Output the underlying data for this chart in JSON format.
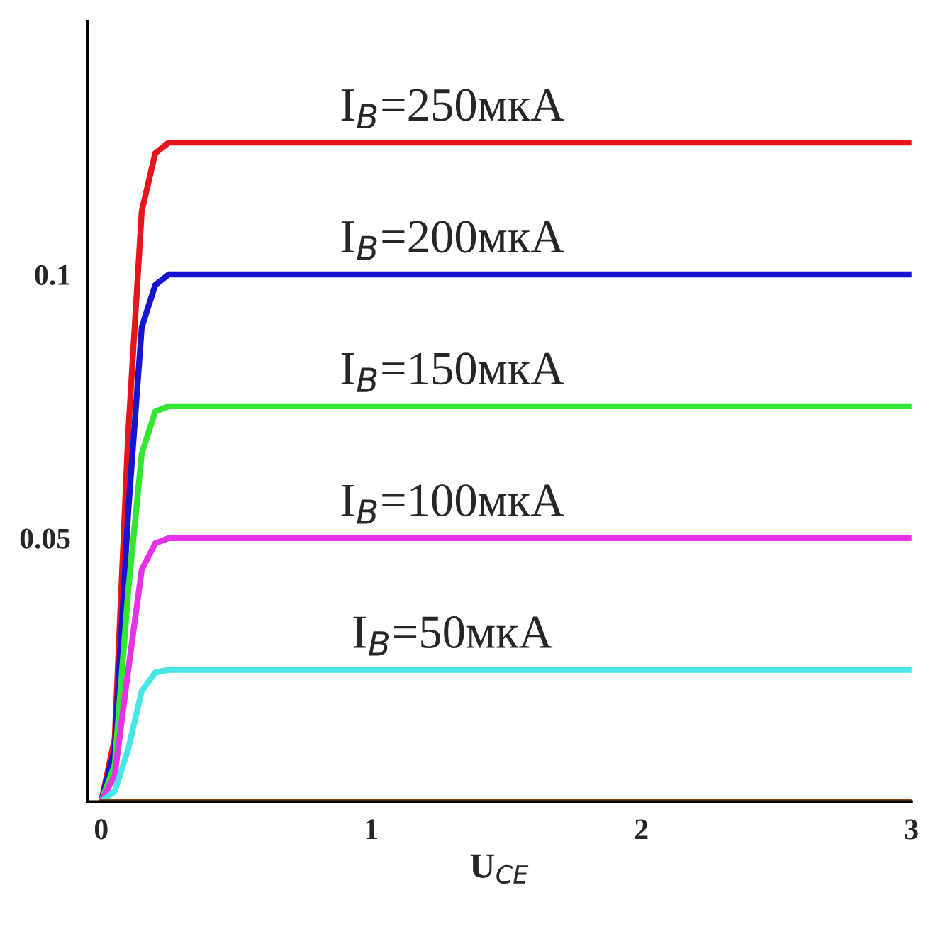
{
  "chart_data": {
    "type": "line",
    "xlabel": "U$_{CE}$",
    "x": [
      0,
      0.05,
      0.1,
      0.15,
      0.2,
      0.25,
      0.3,
      3
    ],
    "series": [
      {
        "name": "I$_{B}$=250мкА",
        "color": "#e8141c",
        "values": [
          0,
          0.012,
          0.07,
          0.112,
          0.123,
          0.125,
          0.125,
          0.125
        ]
      },
      {
        "name": "I$_{B}$=200мкА",
        "color": "#1414d2",
        "values": [
          0,
          0.01,
          0.055,
          0.09,
          0.098,
          0.1,
          0.1,
          0.1
        ]
      },
      {
        "name": "I$_{B}$=150мкА",
        "color": "#32e632",
        "values": [
          0,
          0.007,
          0.04,
          0.066,
          0.074,
          0.075,
          0.075,
          0.075
        ]
      },
      {
        "name": "I$_{B}$=100мкА",
        "color": "#e632e6",
        "values": [
          0,
          0.005,
          0.025,
          0.044,
          0.049,
          0.05,
          0.05,
          0.05
        ]
      },
      {
        "name": "I$_{B}$=50мкА",
        "color": "#46e6e6",
        "values": [
          0,
          0.002,
          0.01,
          0.021,
          0.0245,
          0.025,
          0.025,
          0.025
        ]
      },
      {
        "color": "#8b4513",
        "values": [
          0,
          0,
          0,
          0,
          0,
          0,
          0,
          0
        ]
      }
    ],
    "xlim": [
      -0.05,
      3
    ],
    "ylim": [
      0,
      0.148
    ],
    "xticks": [
      0,
      1,
      2,
      3
    ],
    "yticks": [
      0.05,
      0.1
    ],
    "grid": false,
    "legend": false,
    "marker": "none",
    "line_style": "solid"
  }
}
